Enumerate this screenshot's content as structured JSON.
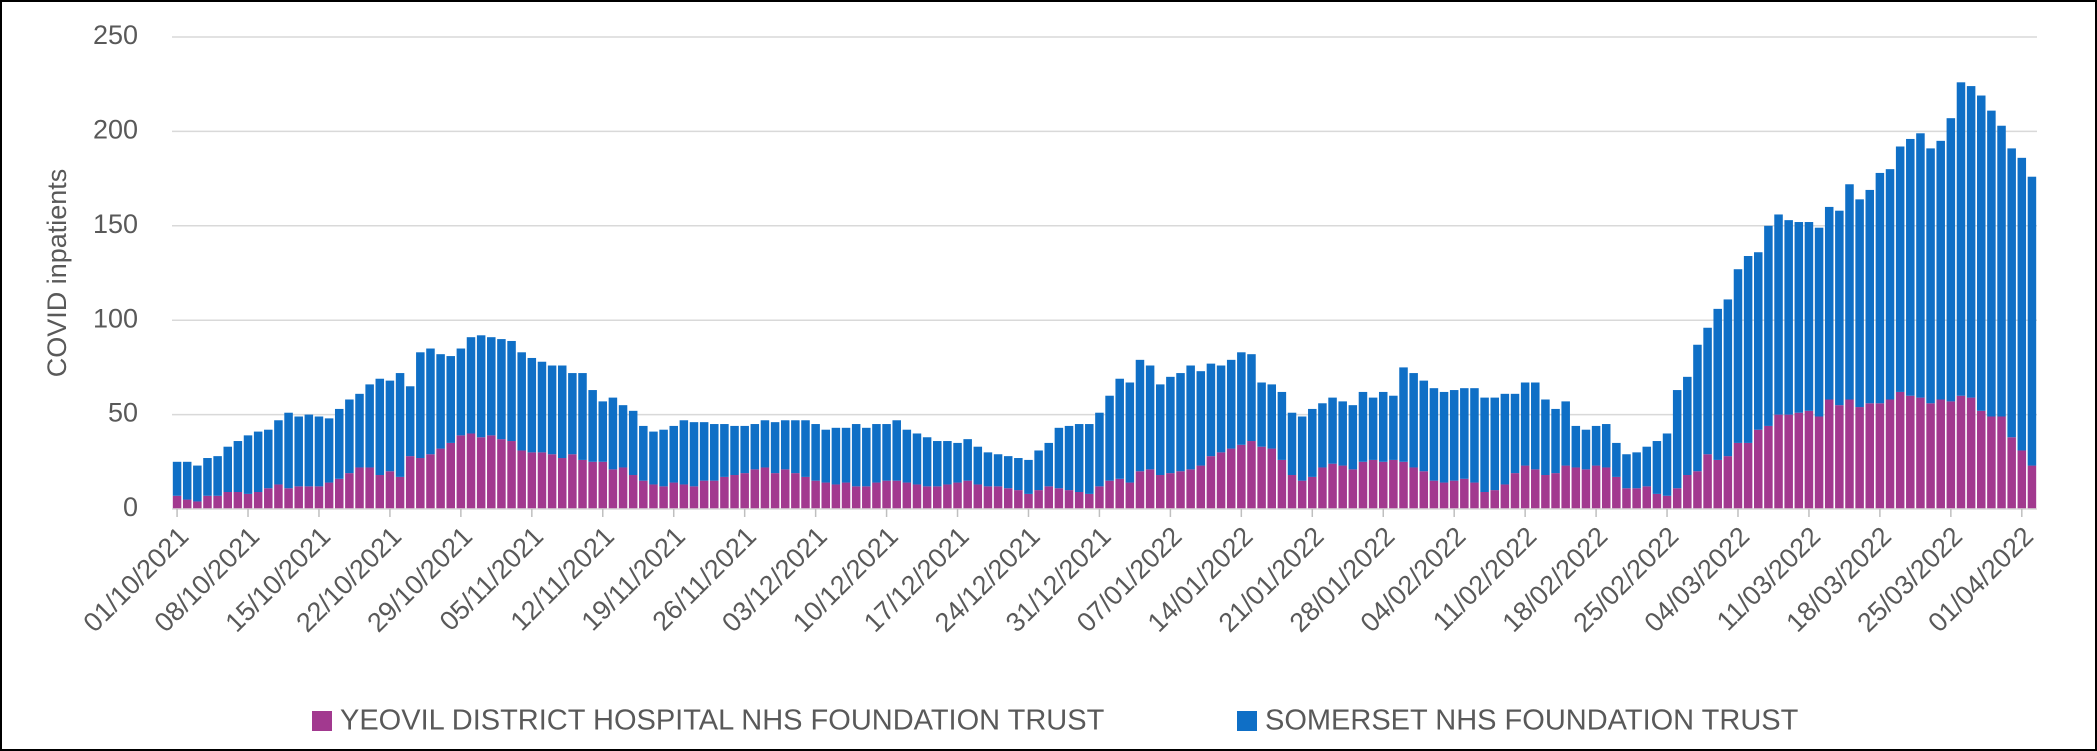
{
  "chart_data": {
    "type": "stacked_bar",
    "y_label": "COVID inpatients",
    "ylim": [
      0,
      250
    ],
    "yticks": [
      0,
      50,
      100,
      150,
      200,
      250
    ],
    "grid": true,
    "legend": "bottom",
    "categories": [
      "01/10/2021",
      null,
      null,
      null,
      null,
      null,
      null,
      "08/10/2021",
      null,
      null,
      null,
      null,
      null,
      null,
      "15/10/2021",
      null,
      null,
      null,
      null,
      null,
      null,
      "22/10/2021",
      null,
      null,
      null,
      null,
      null,
      null,
      "29/10/2021",
      null,
      null,
      null,
      null,
      null,
      null,
      "05/11/2021",
      null,
      null,
      null,
      null,
      null,
      null,
      "12/11/2021",
      null,
      null,
      null,
      null,
      null,
      null,
      "19/11/2021",
      null,
      null,
      null,
      null,
      null,
      null,
      "26/11/2021",
      null,
      null,
      null,
      null,
      null,
      null,
      "03/12/2021",
      null,
      null,
      null,
      null,
      null,
      null,
      "10/12/2021",
      null,
      null,
      null,
      null,
      null,
      null,
      "17/12/2021",
      null,
      null,
      null,
      null,
      null,
      null,
      "24/12/2021",
      null,
      null,
      null,
      null,
      null,
      null,
      "31/12/2021",
      null,
      null,
      null,
      null,
      null,
      null,
      "07/01/2022",
      null,
      null,
      null,
      null,
      null,
      null,
      "14/01/2022",
      null,
      null,
      null,
      null,
      null,
      null,
      "21/01/2022",
      null,
      null,
      null,
      null,
      null,
      null,
      "28/01/2022",
      null,
      null,
      null,
      null,
      null,
      null,
      "04/02/2022",
      null,
      null,
      null,
      null,
      null,
      null,
      "11/02/2022",
      null,
      null,
      null,
      null,
      null,
      null,
      "18/02/2022",
      null,
      null,
      null,
      null,
      null,
      null,
      "25/02/2022",
      null,
      null,
      null,
      null,
      null,
      null,
      "04/03/2022",
      null,
      null,
      null,
      null,
      null,
      null,
      "11/03/2022",
      null,
      null,
      null,
      null,
      null,
      null,
      "18/03/2022",
      null,
      null,
      null,
      null,
      null,
      null,
      "25/03/2022",
      null,
      null,
      null,
      null,
      null,
      null,
      "01/04/2022",
      null
    ],
    "series": [
      {
        "name": "YEOVIL DISTRICT HOSPITAL NHS FOUNDATION TRUST",
        "color": "#a2398f",
        "values": [
          7,
          5,
          4,
          7,
          7,
          9,
          9,
          8,
          9,
          11,
          13,
          11,
          12,
          12,
          12,
          14,
          16,
          19,
          22,
          22,
          18,
          20,
          17,
          28,
          27,
          29,
          32,
          35,
          39,
          40,
          38,
          39,
          37,
          36,
          31,
          30,
          30,
          29,
          27,
          29,
          26,
          25,
          25,
          21,
          22,
          18,
          15,
          13,
          12,
          14,
          13,
          12,
          15,
          15,
          17,
          18,
          19,
          21,
          22,
          19,
          21,
          19,
          17,
          15,
          14,
          13,
          14,
          12,
          12,
          14,
          15,
          15,
          14,
          13,
          12,
          12,
          13,
          14,
          15,
          13,
          12,
          12,
          11,
          10,
          8,
          10,
          12,
          11,
          10,
          9,
          8,
          12,
          15,
          16,
          14,
          20,
          21,
          18,
          19,
          20,
          21,
          23,
          28,
          30,
          32,
          34,
          36,
          33,
          32,
          26,
          18,
          15,
          17,
          22,
          24,
          23,
          21,
          25,
          26,
          25,
          26,
          25,
          22,
          20,
          15,
          14,
          15,
          16,
          14,
          9,
          10,
          13,
          19,
          23,
          21,
          18,
          19,
          23,
          22,
          21,
          23,
          22,
          17,
          11,
          11,
          12,
          8,
          7,
          11,
          18,
          20,
          29,
          26,
          28,
          35,
          35,
          42,
          44,
          50,
          50,
          51,
          52,
          49,
          58,
          55,
          58,
          54,
          56,
          56,
          58,
          62,
          60,
          59,
          56,
          58,
          57,
          60,
          59,
          52,
          49,
          49,
          38,
          31,
          23
        ]
      },
      {
        "name": "SOMERSET NHS FOUNDATION TRUST",
        "color": "#0f6fc6",
        "values": [
          18,
          20,
          19,
          20,
          21,
          24,
          27,
          31,
          32,
          31,
          34,
          40,
          37,
          38,
          37,
          34,
          37,
          39,
          39,
          44,
          51,
          48,
          55,
          37,
          56,
          56,
          50,
          46,
          46,
          51,
          54,
          52,
          53,
          53,
          52,
          50,
          48,
          47,
          49,
          43,
          46,
          38,
          32,
          38,
          33,
          34,
          29,
          28,
          30,
          30,
          34,
          34,
          31,
          30,
          28,
          26,
          25,
          24,
          25,
          27,
          26,
          28,
          30,
          30,
          28,
          30,
          29,
          33,
          31,
          31,
          30,
          32,
          28,
          27,
          26,
          24,
          23,
          21,
          22,
          20,
          18,
          17,
          17,
          17,
          18,
          21,
          23,
          32,
          34,
          36,
          37,
          39,
          45,
          53,
          53,
          59,
          55,
          48,
          51,
          52,
          55,
          50,
          49,
          46,
          47,
          49,
          46,
          34,
          34,
          36,
          33,
          34,
          36,
          34,
          35,
          34,
          34,
          37,
          33,
          37,
          34,
          50,
          50,
          48,
          49,
          48,
          48,
          48,
          50,
          50,
          49,
          48,
          42,
          44,
          46,
          40,
          34,
          34,
          22,
          21,
          21,
          23,
          18,
          18,
          19,
          21,
          28,
          33,
          52,
          52,
          67,
          67,
          80,
          83,
          92,
          99,
          94,
          106,
          106,
          103,
          101,
          100,
          100,
          102,
          103,
          114,
          110,
          113,
          122,
          122,
          130,
          136,
          140,
          135,
          137,
          150,
          166,
          165,
          167,
          162,
          154,
          153,
          155,
          153
        ]
      }
    ]
  }
}
